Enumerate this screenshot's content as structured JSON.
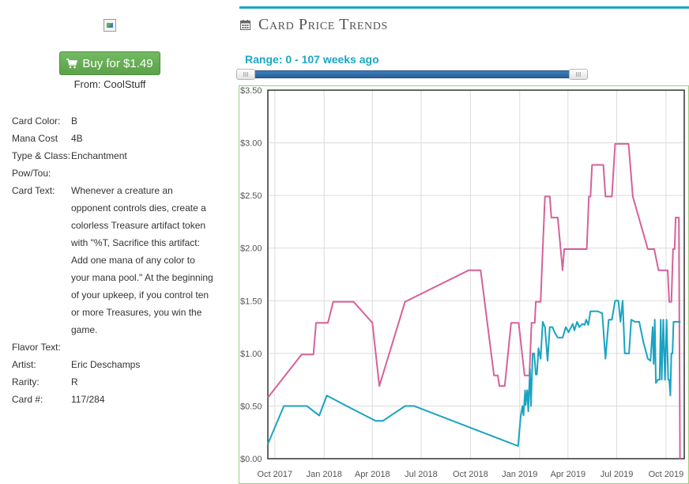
{
  "buy": {
    "label": "Buy for $1.49",
    "from": "From: CoolStuff"
  },
  "card": {
    "properties": [
      {
        "label": "Card Color:",
        "value": "B"
      },
      {
        "label": "Mana Cost",
        "value": "4B"
      },
      {
        "label": "Type & Class:",
        "value": "Enchantment"
      },
      {
        "label": "Pow/Tou:",
        "value": ""
      },
      {
        "label": "Card Text:",
        "value": "Whenever a creature an opponent controls dies, create a colorless Treasure artifact token with \"%T, Sacrifice this artifact: Add one mana of any color to your mana pool.\" At the beginning of your upkeep, if you control ten or more Treasures, you win the game."
      },
      {
        "label": "Flavor Text:",
        "value": ""
      },
      {
        "label": "Artist:",
        "value": "Eric Deschamps"
      },
      {
        "label": "Rarity:",
        "value": "R"
      },
      {
        "label": "Card #:",
        "value": "117/284"
      }
    ]
  },
  "section": {
    "title": "Card Price Trends",
    "icon": "calendar-icon"
  },
  "range": {
    "label": "Range: 0 - 107 weeks ago",
    "handle_glyph": "III"
  },
  "colors": {
    "accent": "#1aa7c3",
    "buy_button": "#5ca24a",
    "series_pink": "#d6619a",
    "series_teal": "#1aa3c2",
    "plot_border": "#9ccf7a"
  },
  "chart_data": {
    "type": "line",
    "title": "",
    "xlabel": "",
    "ylabel": "",
    "ylim": [
      0,
      3.5
    ],
    "xlim": [
      "2017-09-18",
      "2019-11-04"
    ],
    "y_ticks": [
      "$0.00",
      "$0.50",
      "$1.00",
      "$1.50",
      "$2.00",
      "$2.50",
      "$3.00",
      "$3.50"
    ],
    "x_ticks": [
      {
        "label": "Oct 2017",
        "date": "2017-10-01"
      },
      {
        "label": "Jan 2018",
        "date": "2018-01-01"
      },
      {
        "label": "Apr 2018",
        "date": "2018-04-01"
      },
      {
        "label": "Jul 2018",
        "date": "2018-07-01"
      },
      {
        "label": "Oct 2018",
        "date": "2018-10-01"
      },
      {
        "label": "Jan 2019",
        "date": "2019-01-01"
      },
      {
        "label": "Apr 2019",
        "date": "2019-04-01"
      },
      {
        "label": "Jul 2019",
        "date": "2019-07-01"
      },
      {
        "label": "Oct 2019",
        "date": "2019-10-01"
      }
    ],
    "grid": true,
    "series": [
      {
        "color": "#d6619a",
        "points": [
          [
            "2017-09-18",
            0.58
          ],
          [
            "2017-11-20",
            0.99
          ],
          [
            "2017-12-12",
            0.99
          ],
          [
            "2017-12-17",
            1.29
          ],
          [
            "2018-01-08",
            1.29
          ],
          [
            "2018-01-18",
            1.49
          ],
          [
            "2018-02-25",
            1.49
          ],
          [
            "2018-04-01",
            1.29
          ],
          [
            "2018-04-14",
            0.69
          ],
          [
            "2018-06-01",
            1.49
          ],
          [
            "2018-09-28",
            1.79
          ],
          [
            "2018-10-20",
            1.79
          ],
          [
            "2018-11-14",
            0.79
          ],
          [
            "2018-11-21",
            0.79
          ],
          [
            "2018-11-24",
            0.69
          ],
          [
            "2018-12-04",
            0.69
          ],
          [
            "2018-12-16",
            1.29
          ],
          [
            "2018-12-30",
            1.29
          ],
          [
            "2019-01-10",
            0.79
          ],
          [
            "2019-01-19",
            0.79
          ],
          [
            "2019-01-23",
            1.29
          ],
          [
            "2019-01-29",
            1.29
          ],
          [
            "2019-01-31",
            1.49
          ],
          [
            "2019-02-09",
            1.49
          ],
          [
            "2019-02-13",
            1.99
          ],
          [
            "2019-02-17",
            2.49
          ],
          [
            "2019-02-26",
            2.49
          ],
          [
            "2019-03-01",
            2.29
          ],
          [
            "2019-03-13",
            2.29
          ],
          [
            "2019-03-22",
            1.79
          ],
          [
            "2019-03-25",
            1.99
          ],
          [
            "2019-04-18",
            1.99
          ],
          [
            "2019-05-06",
            1.99
          ],
          [
            "2019-05-10",
            2.49
          ],
          [
            "2019-05-13",
            2.49
          ],
          [
            "2019-05-16",
            2.79
          ],
          [
            "2019-06-06",
            2.79
          ],
          [
            "2019-06-10",
            2.49
          ],
          [
            "2019-06-22",
            2.49
          ],
          [
            "2019-06-28",
            2.99
          ],
          [
            "2019-07-23",
            2.99
          ],
          [
            "2019-07-31",
            2.49
          ],
          [
            "2019-08-28",
            1.99
          ],
          [
            "2019-09-09",
            1.99
          ],
          [
            "2019-09-17",
            1.79
          ],
          [
            "2019-10-04",
            1.79
          ],
          [
            "2019-10-07",
            1.49
          ],
          [
            "2019-10-11",
            1.49
          ],
          [
            "2019-10-14",
            1.99
          ],
          [
            "2019-10-17",
            1.99
          ],
          [
            "2019-10-19",
            2.29
          ],
          [
            "2019-10-25",
            2.29
          ],
          [
            "2019-10-27",
            0.0
          ]
        ]
      },
      {
        "color": "#1aa3c2",
        "points": [
          [
            "2017-09-18",
            0.14
          ],
          [
            "2017-10-18",
            0.5
          ],
          [
            "2017-11-30",
            0.5
          ],
          [
            "2017-12-23",
            0.41
          ],
          [
            "2018-01-06",
            0.6
          ],
          [
            "2018-02-12",
            0.5
          ],
          [
            "2018-04-07",
            0.36
          ],
          [
            "2018-04-21",
            0.36
          ],
          [
            "2018-06-01",
            0.5
          ],
          [
            "2018-06-18",
            0.5
          ],
          [
            "2018-12-29",
            0.12
          ],
          [
            "2019-01-03",
            0.41
          ],
          [
            "2019-01-06",
            0.5
          ],
          [
            "2019-01-08",
            0.41
          ],
          [
            "2019-01-11",
            0.65
          ],
          [
            "2019-01-12",
            0.51
          ],
          [
            "2019-01-15",
            0.65
          ],
          [
            "2019-01-17",
            0.45
          ],
          [
            "2019-01-20",
            0.85
          ],
          [
            "2019-01-22",
            0.5
          ],
          [
            "2019-01-25",
            1.0
          ],
          [
            "2019-01-28",
            1.0
          ],
          [
            "2019-01-31",
            0.8
          ],
          [
            "2019-02-02",
            0.8
          ],
          [
            "2019-02-05",
            1.05
          ],
          [
            "2019-02-09",
            0.95
          ],
          [
            "2019-02-13",
            1.3
          ],
          [
            "2019-02-17",
            1.25
          ],
          [
            "2019-02-22",
            0.93
          ],
          [
            "2019-02-26",
            1.25
          ],
          [
            "2019-03-03",
            1.25
          ],
          [
            "2019-03-07",
            1.2
          ],
          [
            "2019-03-13",
            1.15
          ],
          [
            "2019-03-22",
            1.15
          ],
          [
            "2019-03-28",
            1.25
          ],
          [
            "2019-04-02",
            1.2
          ],
          [
            "2019-04-10",
            1.28
          ],
          [
            "2019-04-13",
            1.22
          ],
          [
            "2019-04-18",
            1.3
          ],
          [
            "2019-04-22",
            1.25
          ],
          [
            "2019-04-28",
            1.28
          ],
          [
            "2019-05-02",
            1.27
          ],
          [
            "2019-05-05",
            1.32
          ],
          [
            "2019-05-09",
            1.27
          ],
          [
            "2019-05-13",
            1.4
          ],
          [
            "2019-05-20",
            1.4
          ],
          [
            "2019-05-27",
            1.4
          ],
          [
            "2019-06-04",
            1.38
          ],
          [
            "2019-06-10",
            0.95
          ],
          [
            "2019-06-16",
            1.32
          ],
          [
            "2019-06-22",
            1.32
          ],
          [
            "2019-06-28",
            1.5
          ],
          [
            "2019-07-04",
            1.5
          ],
          [
            "2019-07-08",
            1.3
          ],
          [
            "2019-07-12",
            1.5
          ],
          [
            "2019-07-16",
            1.0
          ],
          [
            "2019-07-24",
            1.0
          ],
          [
            "2019-07-28",
            1.32
          ],
          [
            "2019-08-04",
            1.3
          ],
          [
            "2019-08-12",
            1.3
          ],
          [
            "2019-08-20",
            1.1
          ],
          [
            "2019-08-28",
            0.95
          ],
          [
            "2019-09-02",
            0.93
          ],
          [
            "2019-09-06",
            1.25
          ],
          [
            "2019-09-08",
            0.9
          ],
          [
            "2019-09-10",
            1.32
          ],
          [
            "2019-09-12",
            0.72
          ],
          [
            "2019-09-16",
            0.75
          ],
          [
            "2019-09-19",
            0.75
          ],
          [
            "2019-09-21",
            1.32
          ],
          [
            "2019-09-23",
            0.75
          ],
          [
            "2019-09-26",
            1.32
          ],
          [
            "2019-09-29",
            0.75
          ],
          [
            "2019-10-02",
            1.32
          ],
          [
            "2019-10-05",
            0.75
          ],
          [
            "2019-10-07",
            0.75
          ],
          [
            "2019-10-09",
            0.6
          ],
          [
            "2019-10-11",
            1.0
          ],
          [
            "2019-10-13",
            1.0
          ],
          [
            "2019-10-15",
            1.3
          ],
          [
            "2019-10-20",
            1.3
          ],
          [
            "2019-10-28",
            1.3
          ]
        ]
      }
    ]
  }
}
